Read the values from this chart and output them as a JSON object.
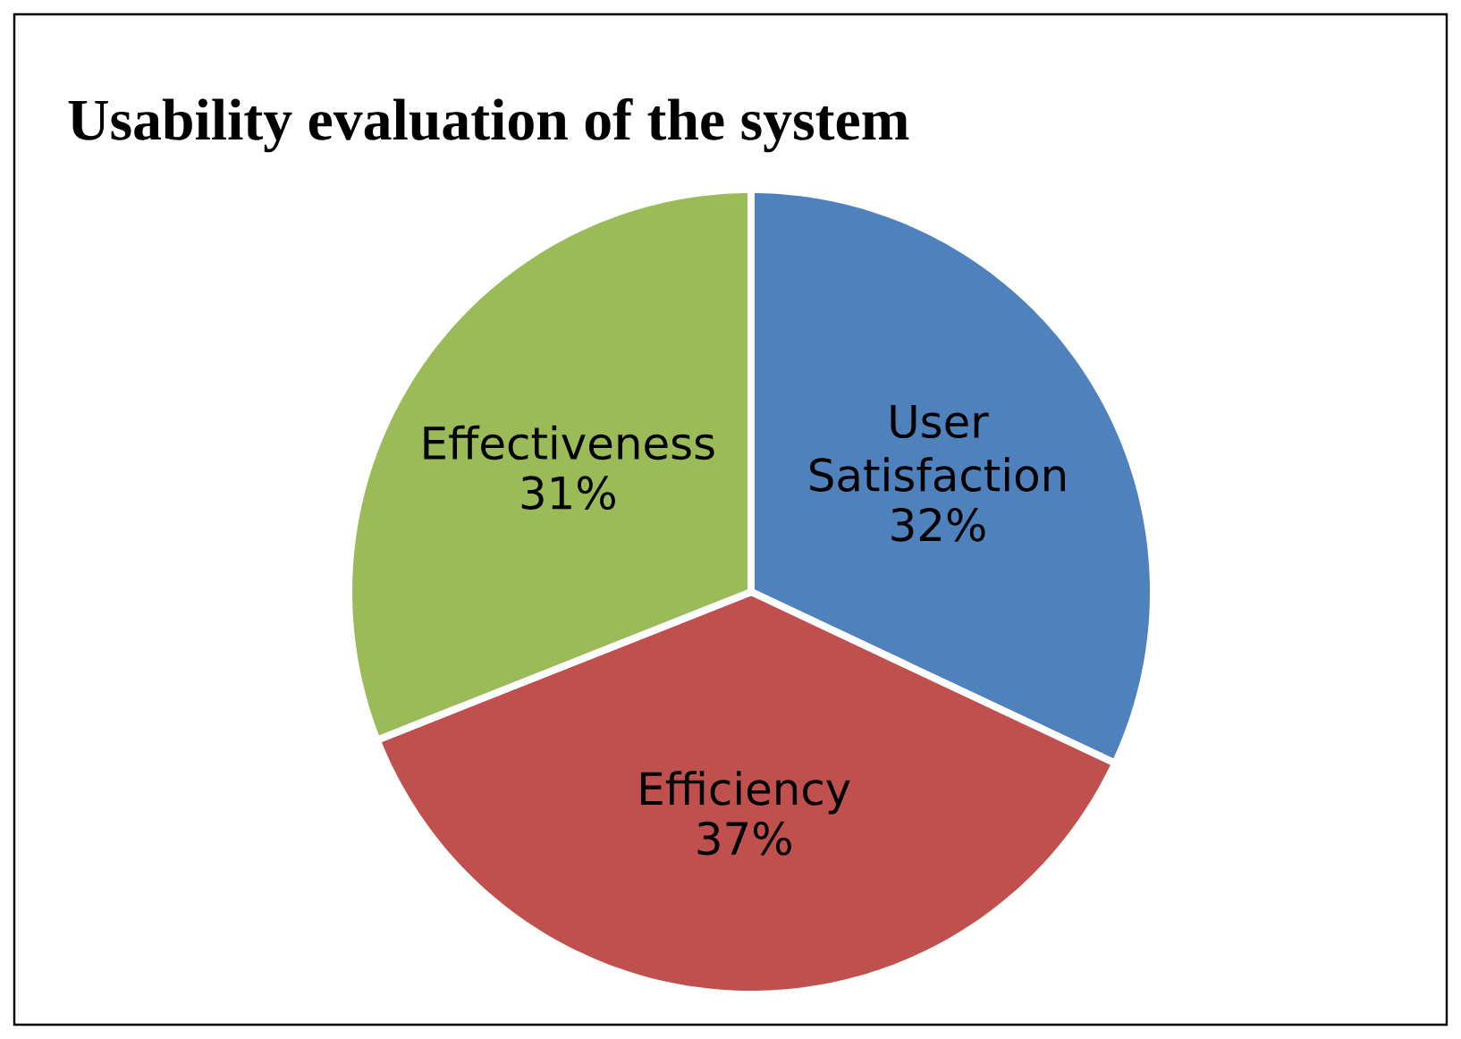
{
  "chart_data": {
    "type": "pie",
    "title": "Usability evaluation of the system",
    "categories": [
      "User Satisfaction",
      "Efficiency",
      "Effectiveness"
    ],
    "values": [
      32,
      37,
      31
    ],
    "colors": [
      "#4f81bd",
      "#c0504d",
      "#9bbb59"
    ],
    "value_labels": [
      "32%",
      "37%",
      "31%"
    ]
  }
}
